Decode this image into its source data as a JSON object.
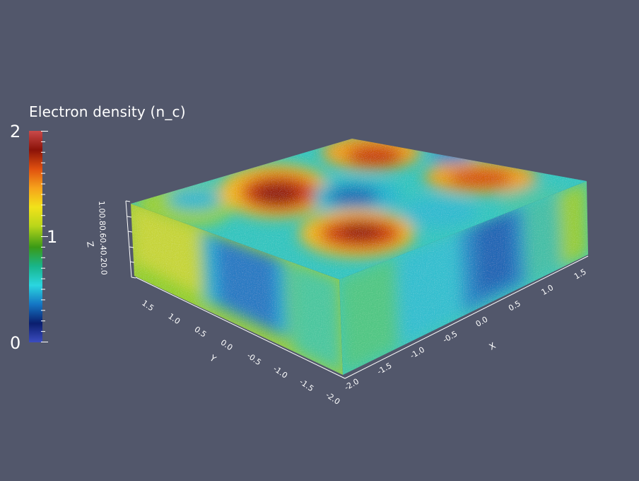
{
  "colorbar": {
    "title": "Electron density (n_c)",
    "max_label": "2",
    "mid_label": "1",
    "min_label": "0",
    "colors": [
      "#3b4cc0",
      "#0a1e6e",
      "#1476c4",
      "#2ad6e0",
      "#18b58a",
      "#3a9a16",
      "#b9d61a",
      "#f2e21a",
      "#f6a21b",
      "#e0500f",
      "#8b1208",
      "#c94a4a"
    ]
  },
  "axes": {
    "x_label": "X",
    "y_label": "Y",
    "z_label": "Z",
    "x_ticks": [
      "-2.0",
      "-1.5",
      "-1.0",
      "-0.5",
      "0.0",
      "0.5",
      "1.0",
      "1.5"
    ],
    "y_ticks": [
      "1.5",
      "1.0",
      "0.5",
      "0.0",
      "-0.5",
      "-1.0",
      "-1.5",
      "-2.0"
    ],
    "z_ticks": "1.00.80.60.40.20.0"
  }
}
